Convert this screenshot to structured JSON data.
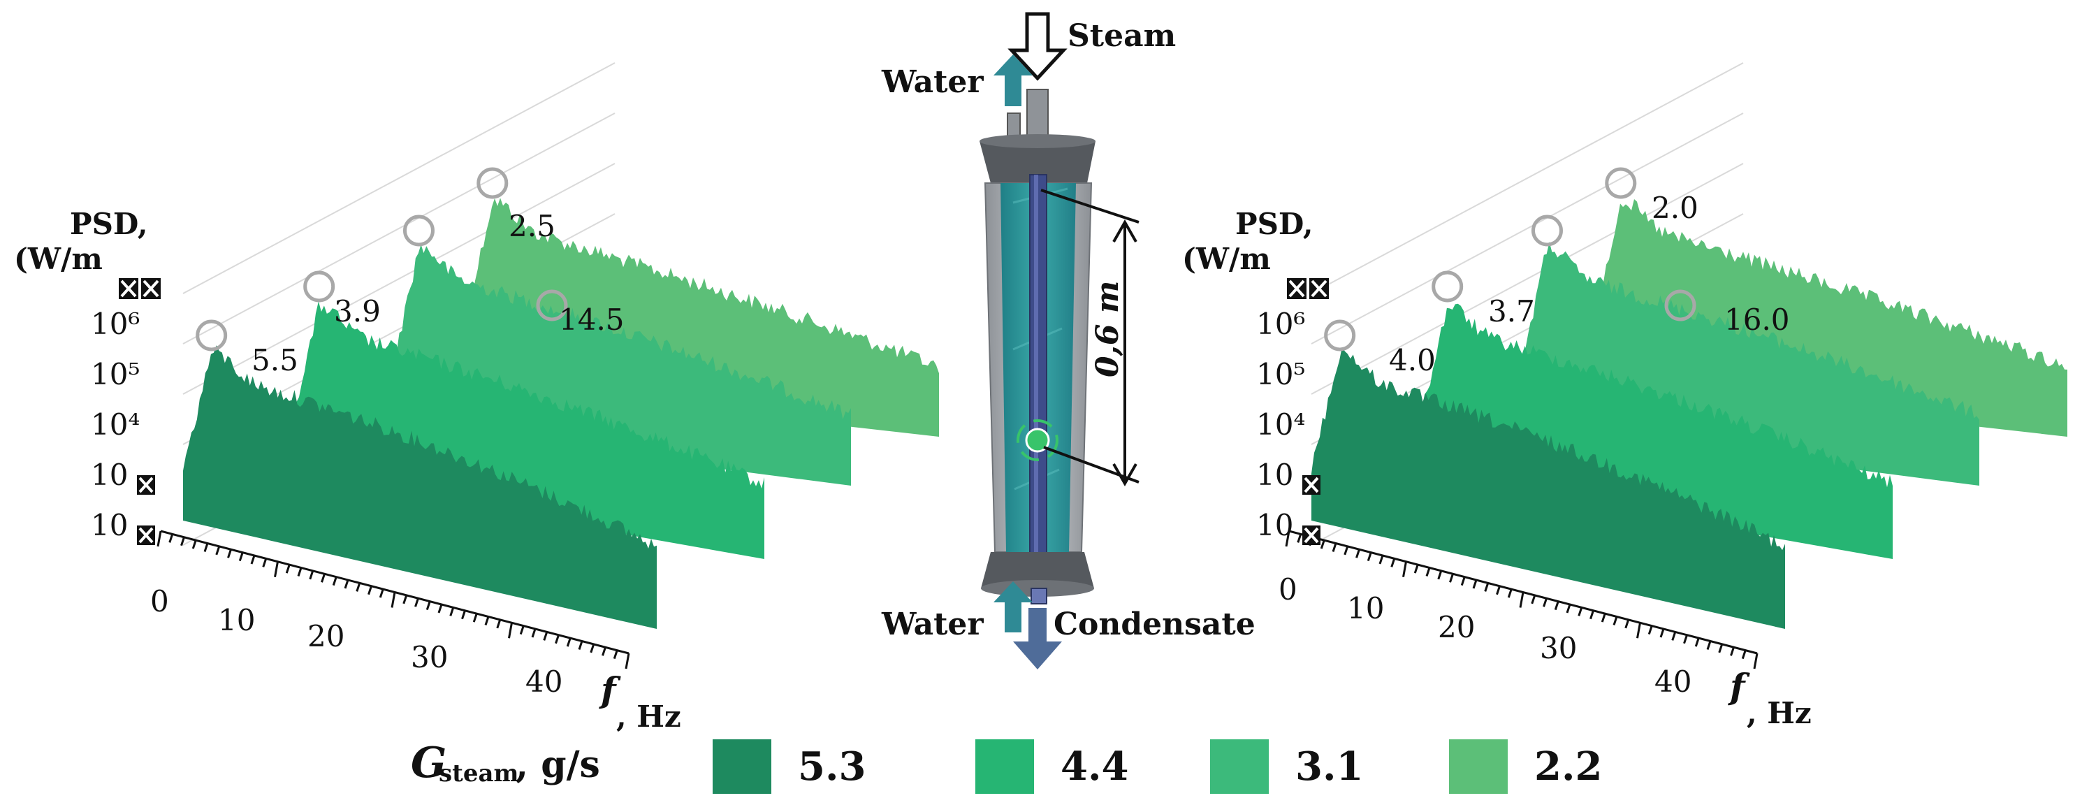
{
  "colors": {
    "series_1": "#1e8a5f",
    "series_2": "#26b573",
    "series_3": "#3cba7b",
    "series_4": "#5cbf78",
    "water_arrow": "#2f8a95",
    "condensate_arrow": "#4f6c99",
    "marker_circle": "#a8a8a8"
  },
  "left_panel": {
    "y_axis_label_line1": "PSD,",
    "y_axis_label_line2": "(W/m",
    "y_ticks": [
      "10⁶",
      "10⁵",
      "10⁴",
      "10",
      "10"
    ],
    "x_ticks": [
      "0",
      "10",
      "20",
      "30",
      "40"
    ],
    "x_axis_label": "f",
    "x_axis_unit": ", Hz",
    "peak_labels": [
      "5.5",
      "3.9",
      "2.5",
      "14.5"
    ]
  },
  "right_panel": {
    "y_axis_label_line1": "PSD,",
    "y_axis_label_line2": "(W/m",
    "y_ticks": [
      "10⁶",
      "10⁵",
      "10⁴",
      "10",
      "10"
    ],
    "x_ticks": [
      "0",
      "10",
      "20",
      "30",
      "40"
    ],
    "x_axis_label": "f",
    "x_axis_unit": ", Hz",
    "peak_labels": [
      "4.0",
      "3.7",
      "2.0",
      "16.0"
    ]
  },
  "apparatus": {
    "steam_label": "Steam",
    "water_top_label": "Water",
    "water_bottom_label": "Water",
    "condensate_label": "Condensate",
    "length_label": "0,6 m"
  },
  "legend": {
    "symbol": "G",
    "subscript": "steam",
    "unit": ", g/s",
    "items": [
      {
        "label": "5.3",
        "color": "#1e8a5f"
      },
      {
        "label": "4.4",
        "color": "#26b573"
      },
      {
        "label": "3.1",
        "color": "#3cba7b"
      },
      {
        "label": "2.2",
        "color": "#5cbf78"
      }
    ]
  }
}
